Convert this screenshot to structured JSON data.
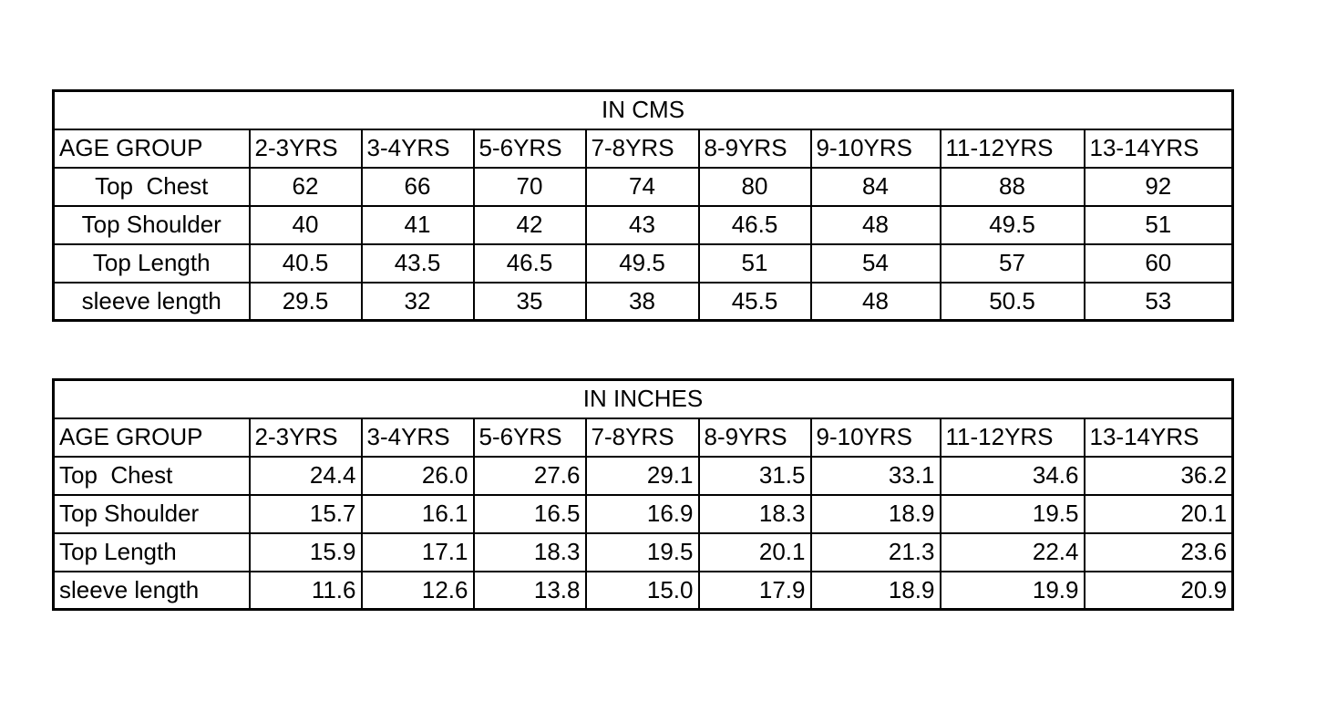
{
  "tables": [
    {
      "title": "IN CMS",
      "header": [
        "AGE GROUP",
        "2-3YRS",
        "3-4YRS",
        "5-6YRS",
        "7-8YRS",
        "8-9YRS",
        "9-10YRS",
        "11-12YRS",
        "13-14YRS"
      ],
      "rows": [
        [
          "Top  Chest",
          "62",
          "66",
          "70",
          "74",
          "80",
          "84",
          "88",
          "92"
        ],
        [
          "Top Shoulder",
          "40",
          "41",
          "42",
          "43",
          "46.5",
          "48",
          "49.5",
          "51"
        ],
        [
          "Top Length",
          "40.5",
          "43.5",
          "46.5",
          "49.5",
          "51",
          "54",
          "57",
          "60"
        ],
        [
          "sleeve length",
          "29.5",
          "32",
          "35",
          "38",
          "45.5",
          "48",
          "50.5",
          "53"
        ]
      ]
    },
    {
      "title": "IN INCHES",
      "header": [
        "AGE GROUP",
        "2-3YRS",
        "3-4YRS",
        "5-6YRS",
        "7-8YRS",
        "8-9YRS",
        "9-10YRS",
        "11-12YRS",
        "13-14YRS"
      ],
      "rows": [
        [
          "Top  Chest",
          "24.4",
          "26.0",
          "27.6",
          "29.1",
          "31.5",
          "33.1",
          "34.6",
          "36.2"
        ],
        [
          "Top Shoulder",
          "15.7",
          "16.1",
          "16.5",
          "16.9",
          "18.3",
          "18.9",
          "19.5",
          "20.1"
        ],
        [
          "Top Length",
          "15.9",
          "17.1",
          "18.3",
          "19.5",
          "20.1",
          "21.3",
          "22.4",
          "23.6"
        ],
        [
          "sleeve length",
          "11.6",
          "12.6",
          "13.8",
          "15.0",
          "17.9",
          "18.9",
          "19.9",
          "20.9"
        ]
      ]
    }
  ]
}
